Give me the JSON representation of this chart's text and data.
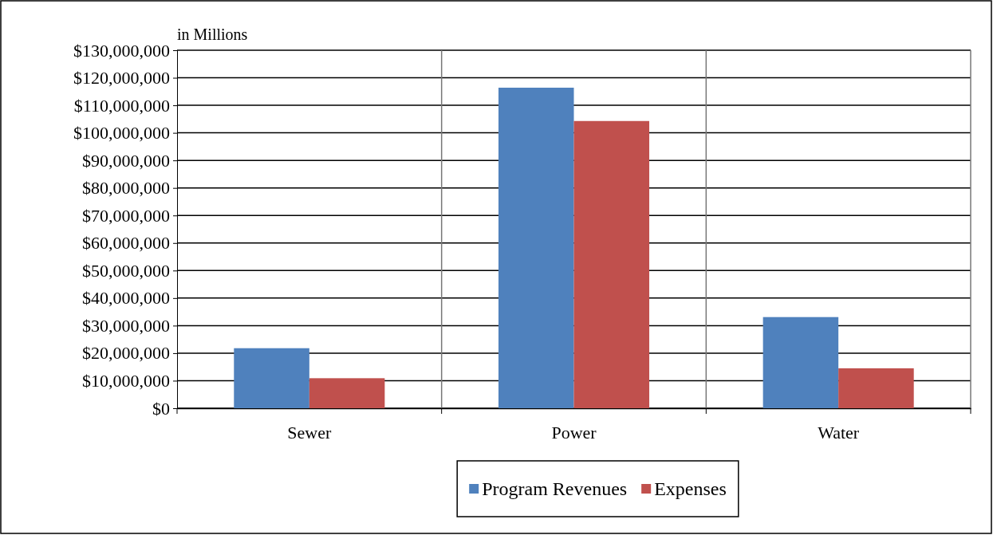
{
  "chart_data": {
    "type": "bar",
    "categories": [
      "Sewer",
      "Power",
      "Water"
    ],
    "series": [
      {
        "name": "Program Revenues",
        "color": "#4f81bd",
        "values": [
          21800000,
          116400000,
          33100000
        ]
      },
      {
        "name": "Expenses",
        "color": "#c0504d",
        "values": [
          10900000,
          104300000,
          14500000
        ]
      }
    ],
    "ylim": [
      0,
      130000000
    ],
    "yticks": [
      {
        "value": 0,
        "label": "$0"
      },
      {
        "value": 10000000,
        "label": "$10,000,000"
      },
      {
        "value": 20000000,
        "label": "$20,000,000"
      },
      {
        "value": 30000000,
        "label": "$30,000,000"
      },
      {
        "value": 40000000,
        "label": "$40,000,000"
      },
      {
        "value": 50000000,
        "label": "$50,000,000"
      },
      {
        "value": 60000000,
        "label": "$60,000,000"
      },
      {
        "value": 70000000,
        "label": "$70,000,000"
      },
      {
        "value": 80000000,
        "label": "$80,000,000"
      },
      {
        "value": 90000000,
        "label": "$90,000,000"
      },
      {
        "value": 100000000,
        "label": "$100,000,000"
      },
      {
        "value": 110000000,
        "label": "$110,000,000"
      },
      {
        "value": 120000000,
        "label": "$120,000,000"
      },
      {
        "value": 130000000,
        "label": "$130,000,000"
      }
    ],
    "annotations": [
      "in Millions"
    ],
    "grid": true,
    "legend": "bottom"
  }
}
